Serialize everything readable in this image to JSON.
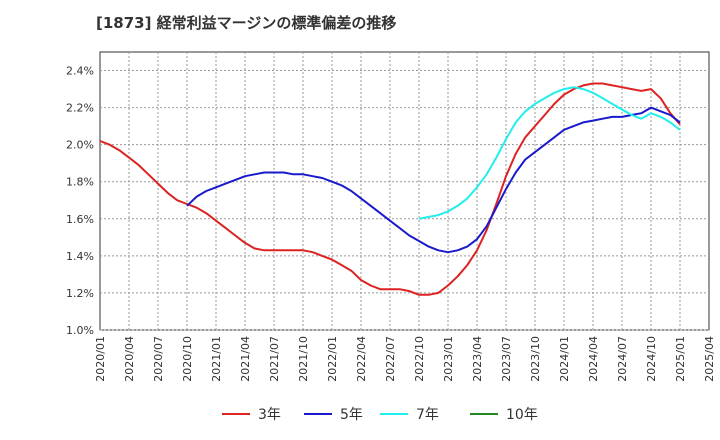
{
  "chart_data": {
    "type": "line",
    "title": "[1873]  経常利益マージンの標準偏差の推移",
    "x_ticks": [
      "2020/01",
      "2020/04",
      "2020/07",
      "2020/10",
      "2021/01",
      "2021/04",
      "2021/07",
      "2021/10",
      "2022/01",
      "2022/04",
      "2022/07",
      "2022/10",
      "2023/01",
      "2023/04",
      "2023/07",
      "2023/10",
      "2024/01",
      "2024/04",
      "2024/07",
      "2024/10",
      "2025/01",
      "2025/04"
    ],
    "y_ticks": [
      "1.0%",
      "1.2%",
      "1.4%",
      "1.6%",
      "1.8%",
      "2.0%",
      "2.2%",
      "2.4%"
    ],
    "ylim": [
      1.0,
      2.5
    ],
    "grid": true,
    "legend_position": "bottom",
    "series": [
      {
        "name": "3年",
        "color": "#dd2222",
        "x": [
          "2020/01",
          "2020/02",
          "2020/03",
          "2020/04",
          "2020/05",
          "2020/06",
          "2020/07",
          "2020/08",
          "2020/09",
          "2020/10",
          "2020/11",
          "2020/12",
          "2021/01",
          "2021/02",
          "2021/03",
          "2021/04",
          "2021/05",
          "2021/06",
          "2021/07",
          "2021/08",
          "2021/09",
          "2021/10",
          "2021/11",
          "2021/12",
          "2022/01",
          "2022/02",
          "2022/03",
          "2022/04",
          "2022/05",
          "2022/06",
          "2022/07",
          "2022/08",
          "2022/09",
          "2022/10",
          "2022/11",
          "2022/12",
          "2023/01",
          "2023/02",
          "2023/03",
          "2023/04",
          "2023/05",
          "2023/06",
          "2023/07",
          "2023/08",
          "2023/09",
          "2023/10",
          "2023/11",
          "2023/12",
          "2024/01",
          "2024/02",
          "2024/03",
          "2024/04",
          "2024/05",
          "2024/06",
          "2024/07",
          "2024/08",
          "2024/09",
          "2024/10",
          "2024/11",
          "2024/12",
          "2025/01"
        ],
        "values": [
          2.02,
          2.0,
          1.97,
          1.93,
          1.89,
          1.84,
          1.79,
          1.74,
          1.7,
          1.68,
          1.66,
          1.63,
          1.59,
          1.55,
          1.51,
          1.47,
          1.44,
          1.43,
          1.43,
          1.43,
          1.43,
          1.43,
          1.42,
          1.4,
          1.38,
          1.35,
          1.32,
          1.27,
          1.24,
          1.22,
          1.22,
          1.22,
          1.21,
          1.19,
          1.19,
          1.2,
          1.24,
          1.29,
          1.35,
          1.43,
          1.54,
          1.68,
          1.83,
          1.95,
          2.04,
          2.1,
          2.16,
          2.22,
          2.27,
          2.3,
          2.32,
          2.33,
          2.33,
          2.32,
          2.31,
          2.3,
          2.29,
          2.3,
          2.25,
          2.17,
          2.11
        ]
      },
      {
        "name": "5年",
        "color": "#1a1acc",
        "x": [
          "2020/10",
          "2020/11",
          "2020/12",
          "2021/01",
          "2021/02",
          "2021/03",
          "2021/04",
          "2021/05",
          "2021/06",
          "2021/07",
          "2021/08",
          "2021/09",
          "2021/10",
          "2021/11",
          "2021/12",
          "2022/01",
          "2022/02",
          "2022/03",
          "2022/04",
          "2022/05",
          "2022/06",
          "2022/07",
          "2022/08",
          "2022/09",
          "2022/10",
          "2022/11",
          "2022/12",
          "2023/01",
          "2023/02",
          "2023/03",
          "2023/04",
          "2023/05",
          "2023/06",
          "2023/07",
          "2023/08",
          "2023/09",
          "2023/10",
          "2023/11",
          "2023/12",
          "2024/01",
          "2024/02",
          "2024/03",
          "2024/04",
          "2024/05",
          "2024/06",
          "2024/07",
          "2024/08",
          "2024/09",
          "2024/10",
          "2024/11",
          "2024/12",
          "2025/01"
        ],
        "values": [
          1.67,
          1.72,
          1.75,
          1.77,
          1.79,
          1.81,
          1.83,
          1.84,
          1.85,
          1.85,
          1.85,
          1.84,
          1.84,
          1.83,
          1.82,
          1.8,
          1.78,
          1.75,
          1.71,
          1.67,
          1.63,
          1.59,
          1.55,
          1.51,
          1.48,
          1.45,
          1.43,
          1.42,
          1.43,
          1.45,
          1.49,
          1.56,
          1.66,
          1.76,
          1.85,
          1.92,
          1.96,
          2.0,
          2.04,
          2.08,
          2.1,
          2.12,
          2.13,
          2.14,
          2.15,
          2.15,
          2.16,
          2.17,
          2.2,
          2.18,
          2.16,
          2.12
        ]
      },
      {
        "name": "7年",
        "color": "#22eeee",
        "x": [
          "2022/10",
          "2022/11",
          "2022/12",
          "2023/01",
          "2023/02",
          "2023/03",
          "2023/04",
          "2023/05",
          "2023/06",
          "2023/07",
          "2023/08",
          "2023/09",
          "2023/10",
          "2023/11",
          "2023/12",
          "2024/01",
          "2024/02",
          "2024/03",
          "2024/04",
          "2024/05",
          "2024/06",
          "2024/07",
          "2024/08",
          "2024/09",
          "2024/10",
          "2024/11",
          "2024/12",
          "2025/01"
        ],
        "values": [
          1.6,
          1.61,
          1.62,
          1.64,
          1.67,
          1.71,
          1.77,
          1.84,
          1.93,
          2.03,
          2.12,
          2.18,
          2.22,
          2.25,
          2.28,
          2.3,
          2.31,
          2.3,
          2.28,
          2.25,
          2.22,
          2.19,
          2.16,
          2.14,
          2.17,
          2.15,
          2.12,
          2.08
        ]
      },
      {
        "name": "10年",
        "color": "#228822",
        "x": [],
        "values": []
      }
    ]
  }
}
